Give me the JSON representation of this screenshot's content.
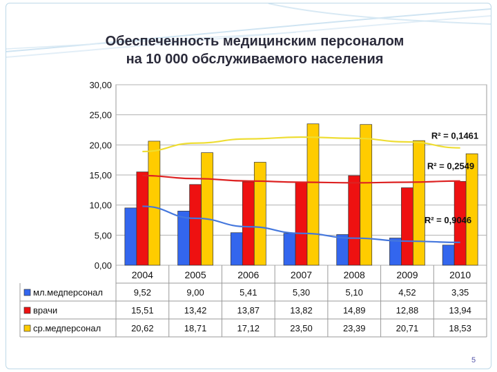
{
  "slide": {
    "title_line1": "Обеспеченность медицинским персоналом",
    "title_line2": "на 10 000 обслуживаемого населения",
    "page_number": "5"
  },
  "colors": {
    "junior": "#3366ee",
    "doctors": "#ee1111",
    "middle": "#ffcc00",
    "trend_junior": "#4477dd",
    "trend_doctors": "#dd2222",
    "trend_middle": "#eedd33"
  },
  "chart_data": {
    "type": "bar",
    "categories": [
      "2004",
      "2005",
      "2006",
      "2007",
      "2008",
      "2009",
      "2010"
    ],
    "ylim": [
      0,
      30
    ],
    "yticks": [
      "0,00",
      "5,00",
      "10,00",
      "15,00",
      "20,00",
      "25,00",
      "30,00"
    ],
    "grid": true,
    "legend": "data-table",
    "series": [
      {
        "name": "мл.медперсонал",
        "values": [
          9.52,
          9.0,
          5.41,
          5.3,
          5.1,
          4.52,
          3.35
        ],
        "labels": [
          "9,52",
          "9,00",
          "5,41",
          "5,30",
          "5,10",
          "4,52",
          "3,35"
        ],
        "trend": {
          "label": "R² = 0,9046",
          "values": [
            9.8,
            7.8,
            6.4,
            5.3,
            4.5,
            4.0,
            3.8
          ]
        }
      },
      {
        "name": "врачи",
        "values": [
          15.51,
          13.42,
          13.87,
          13.82,
          14.89,
          12.88,
          13.94
        ],
        "labels": [
          "15,51",
          "13,42",
          "13,87",
          "13,82",
          "14,89",
          "12,88",
          "13,94"
        ],
        "trend": {
          "label": "R² = 0,2549",
          "values": [
            14.9,
            14.4,
            14.0,
            13.8,
            13.7,
            13.8,
            14.0
          ]
        }
      },
      {
        "name": "ср.медперсонал",
        "values": [
          20.62,
          18.71,
          17.12,
          23.5,
          23.39,
          20.71,
          18.53
        ],
        "labels": [
          "20,62",
          "18,71",
          "17,12",
          "23,50",
          "23,39",
          "20,71",
          "18,53"
        ],
        "trend": {
          "label": "R² = 0,1461",
          "values": [
            18.9,
            20.3,
            21.0,
            21.3,
            21.1,
            20.5,
            19.5
          ]
        }
      }
    ]
  }
}
